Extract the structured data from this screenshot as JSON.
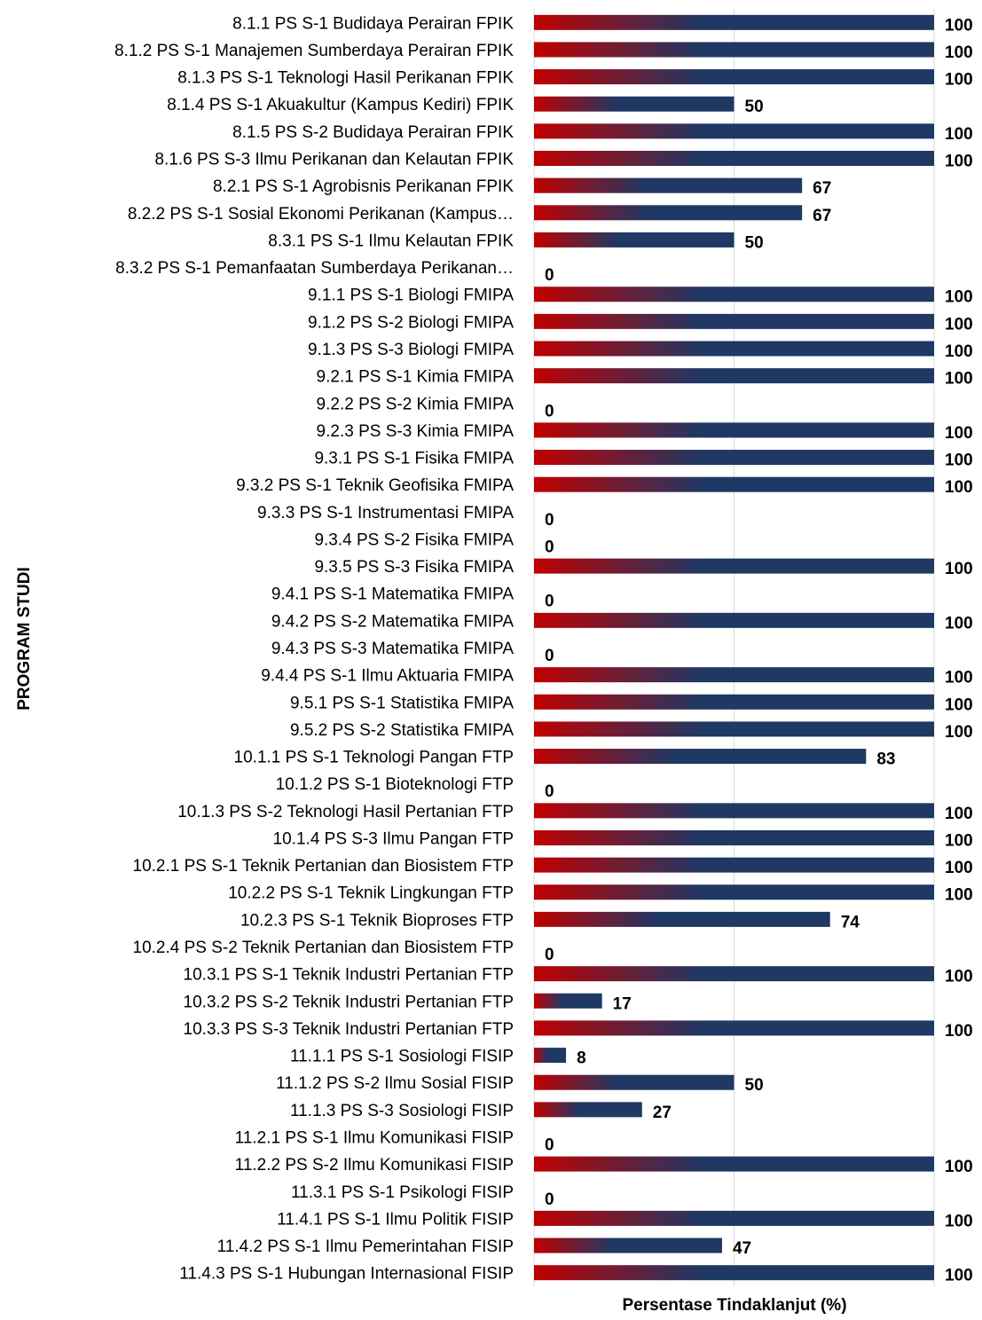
{
  "chart_data": {
    "type": "bar",
    "orientation": "horizontal",
    "xlabel": "Persentase Tindaklanjut (%)",
    "ylabel": "PROGRAM STUDI",
    "xlim": [
      0,
      100
    ],
    "grid": true,
    "bar_gradient": {
      "start": "#c00000",
      "end": "#1f3864"
    },
    "categories": [
      "8.1.1 PS S-1 Budidaya Perairan FPIK",
      "8.1.2 PS S-1 Manajemen Sumberdaya Perairan FPIK",
      "8.1.3 PS S-1 Teknologi Hasil Perikanan FPIK",
      "8.1.4 PS S-1 Akuakultur (Kampus Kediri) FPIK",
      "8.1.5 PS S-2 Budidaya Perairan FPIK",
      "8.1.6 PS S-3 Ilmu Perikanan dan Kelautan FPIK",
      "8.2.1 PS S-1 Agrobisnis Perikanan FPIK",
      "8.2.2 PS S-1 Sosial Ekonomi Perikanan (Kampus…",
      "8.3.1 PS S-1 Ilmu Kelautan FPIK",
      "8.3.2 PS S-1 Pemanfaatan Sumberdaya Perikanan…",
      "9.1.1 PS S-1 Biologi FMIPA",
      "9.1.2 PS S-2 Biologi FMIPA",
      "9.1.3 PS S-3 Biologi FMIPA",
      "9.2.1 PS S-1 Kimia FMIPA",
      "9.2.2 PS S-2 Kimia FMIPA",
      "9.2.3 PS S-3 Kimia FMIPA",
      "9.3.1 PS S-1 Fisika FMIPA",
      "9.3.2 PS S-1 Teknik Geofisika FMIPA",
      "9.3.3 PS S-1 Instrumentasi FMIPA",
      "9.3.4 PS S-2 Fisika FMIPA",
      "9.3.5 PS S-3 Fisika FMIPA",
      "9.4.1 PS S-1 Matematika FMIPA",
      "9.4.2 PS S-2 Matematika FMIPA",
      "9.4.3 PS S-3 Matematika FMIPA",
      "9.4.4 PS S-1 Ilmu Aktuaria FMIPA",
      "9.5.1 PS S-1 Statistika FMIPA",
      "9.5.2 PS S-2 Statistika FMIPA",
      "10.1.1 PS S-1 Teknologi Pangan FTP",
      "10.1.2 PS S-1 Bioteknologi FTP",
      "10.1.3 PS S-2 Teknologi Hasil Pertanian FTP",
      "10.1.4 PS S-3 Ilmu Pangan FTP",
      "10.2.1 PS S-1 Teknik Pertanian dan Biosistem FTP",
      "10.2.2 PS S-1 Teknik Lingkungan FTP",
      "10.2.3 PS S-1 Teknik Bioproses FTP",
      "10.2.4 PS S-2 Teknik Pertanian dan Biosistem FTP",
      "10.3.1 PS S-1 Teknik Industri Pertanian FTP",
      "10.3.2 PS S-2 Teknik Industri Pertanian FTP",
      "10.3.3 PS S-3 Teknik Industri Pertanian FTP",
      "11.1.1 PS S-1 Sosiologi FISIP",
      "11.1.2 PS S-2 Ilmu Sosial FISIP",
      "11.1.3 PS S-3 Sosiologi FISIP",
      "11.2.1 PS S-1 Ilmu Komunikasi FISIP",
      "11.2.2 PS S-2 Ilmu Komunikasi FISIP",
      "11.3.1 PS S-1 Psikologi FISIP",
      "11.4.1 PS S-1 Ilmu Politik FISIP",
      "11.4.2 PS S-1 Ilmu Pemerintahan FISIP",
      "11.4.3 PS S-1 Hubungan Internasional FISIP"
    ],
    "values": [
      100,
      100,
      100,
      50,
      100,
      100,
      67,
      67,
      50,
      0,
      100,
      100,
      100,
      100,
      0,
      100,
      100,
      100,
      0,
      0,
      100,
      0,
      100,
      0,
      100,
      100,
      100,
      83,
      0,
      100,
      100,
      100,
      100,
      74,
      0,
      100,
      17,
      100,
      8,
      50,
      27,
      0,
      100,
      0,
      100,
      47,
      100
    ]
  }
}
